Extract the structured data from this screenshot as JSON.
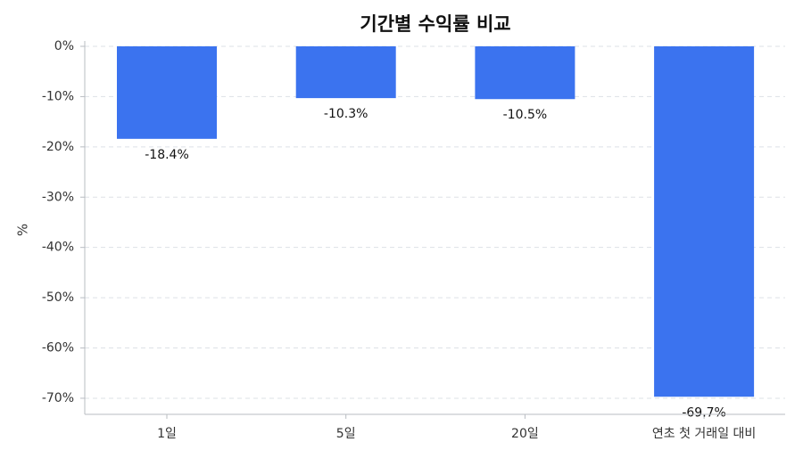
{
  "chart_data": {
    "type": "bar",
    "title": "기간별 수익률 비교",
    "categories": [
      "1일",
      "5일",
      "20일",
      "연초 첫 거래일 대비"
    ],
    "values": [
      -18.4,
      -10.3,
      -10.5,
      -69.7
    ],
    "value_labels": [
      "-18.4%",
      "-10.3%",
      "-10.5%",
      "-69.7%"
    ],
    "color": "#3b73ef",
    "ylabel": "%",
    "ylim": [
      -73.2,
      0
    ],
    "yticks": [
      {
        "value": 0,
        "label": "0%"
      },
      {
        "value": -10,
        "label": "-10%"
      },
      {
        "value": -20,
        "label": "-20%"
      },
      {
        "value": -30,
        "label": "-30%"
      },
      {
        "value": -40,
        "label": "-40%"
      },
      {
        "value": -50,
        "label": "-50%"
      },
      {
        "value": -60,
        "label": "-60%"
      },
      {
        "value": -70,
        "label": "-70%"
      }
    ],
    "grid": true
  }
}
